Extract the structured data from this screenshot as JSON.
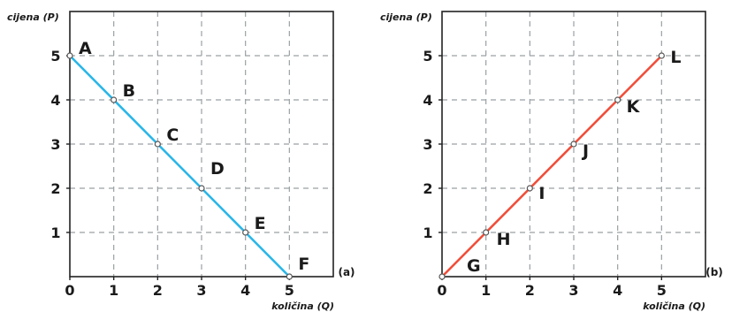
{
  "chart_data": [
    {
      "type": "line",
      "panel_label": "(a)",
      "ylabel": "cijena (P)",
      "xlabel": "količina (Q)",
      "xlim": [
        0,
        6
      ],
      "ylim": [
        0,
        6
      ],
      "xticks": [
        "0",
        "1",
        "2",
        "3",
        "4",
        "5"
      ],
      "yticks": [
        "1",
        "2",
        "3",
        "4",
        "5"
      ],
      "grid": true,
      "line_color": "#29b6e8",
      "points": [
        {
          "label": "A",
          "x": 0,
          "y": 5
        },
        {
          "label": "B",
          "x": 1,
          "y": 4
        },
        {
          "label": "C",
          "x": 2,
          "y": 3
        },
        {
          "label": "D",
          "x": 3,
          "y": 2
        },
        {
          "label": "E",
          "x": 4,
          "y": 1
        },
        {
          "label": "F",
          "x": 5,
          "y": 0
        }
      ]
    },
    {
      "type": "line",
      "panel_label": "(b)",
      "ylabel": "cijena (P)",
      "xlabel": "količina (Q)",
      "xlim": [
        0,
        6
      ],
      "ylim": [
        0,
        6
      ],
      "xticks": [
        "0",
        "1",
        "2",
        "3",
        "4",
        "5"
      ],
      "yticks": [
        "1",
        "2",
        "3",
        "4",
        "5"
      ],
      "grid": true,
      "line_color": "#f04e3a",
      "points": [
        {
          "label": "G",
          "x": 0,
          "y": 0
        },
        {
          "label": "H",
          "x": 1,
          "y": 1
        },
        {
          "label": "I",
          "x": 2,
          "y": 2
        },
        {
          "label": "J",
          "x": 3,
          "y": 3
        },
        {
          "label": "K",
          "x": 4,
          "y": 4
        },
        {
          "label": "L",
          "x": 5,
          "y": 5
        }
      ]
    }
  ]
}
